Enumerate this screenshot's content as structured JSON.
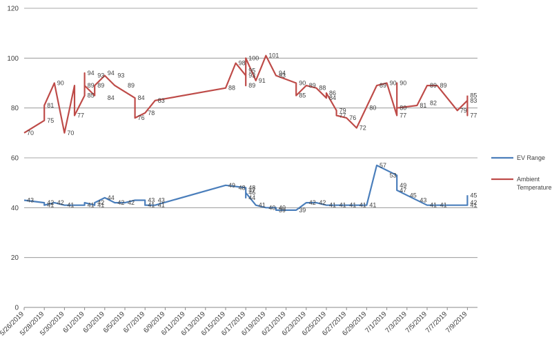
{
  "chart_data": {
    "type": "line",
    "ylim": [
      0,
      120
    ],
    "yticks": [
      0,
      20,
      40,
      60,
      80,
      100,
      120
    ],
    "xrange": [
      "2019-05-26",
      "2019-07-10"
    ],
    "xtick_labels": [
      "5/26/2019",
      "5/28/2019",
      "5/30/2019",
      "6/1/2019",
      "6/3/2019",
      "6/5/2019",
      "6/7/2019",
      "6/9/2019",
      "6/11/2019",
      "6/13/2019",
      "6/15/2019",
      "6/17/2019",
      "6/19/2019",
      "6/21/2019",
      "6/23/2019",
      "6/25/2019",
      "6/27/2019",
      "6/29/2019",
      "7/1/2019",
      "7/3/2019",
      "7/5/2019",
      "7/7/2019",
      "7/9/2019"
    ],
    "grid": true,
    "legend_position": "right",
    "series": [
      {
        "name": "EV Range",
        "color": "#4A7EBB",
        "points": [
          [
            "2019-05-26",
            43
          ],
          [
            "2019-05-28",
            42
          ],
          [
            "2019-05-28",
            41
          ],
          [
            "2019-05-29",
            42
          ],
          [
            "2019-05-29",
            42
          ],
          [
            "2019-05-30",
            41
          ],
          [
            "2019-06-01",
            41
          ],
          [
            "2019-06-01",
            42
          ],
          [
            "2019-06-02",
            41
          ],
          [
            "2019-06-02",
            42
          ],
          [
            "2019-06-03",
            44
          ],
          [
            "2019-06-04",
            42
          ],
          [
            "2019-06-05",
            42
          ],
          [
            "2019-06-06",
            43
          ],
          [
            "2019-06-07",
            43
          ],
          [
            "2019-06-07",
            41
          ],
          [
            "2019-06-08",
            41
          ],
          [
            "2019-06-15",
            49
          ],
          [
            "2019-06-17",
            48
          ],
          [
            "2019-06-17",
            44
          ],
          [
            "2019-06-17",
            46
          ],
          [
            "2019-06-18",
            41
          ],
          [
            "2019-06-19",
            40
          ],
          [
            "2019-06-20",
            40
          ],
          [
            "2019-06-20",
            39
          ],
          [
            "2019-06-22",
            39
          ],
          [
            "2019-06-23",
            42
          ],
          [
            "2019-06-24",
            42
          ],
          [
            "2019-06-25",
            41
          ],
          [
            "2019-06-26",
            41
          ],
          [
            "2019-06-28",
            41
          ],
          [
            "2019-06-29",
            41
          ],
          [
            "2019-06-30",
            57
          ],
          [
            "2019-07-02",
            53
          ],
          [
            "2019-07-02",
            49
          ],
          [
            "2019-07-02",
            47
          ],
          [
            "2019-07-03",
            45
          ],
          [
            "2019-07-05",
            41
          ],
          [
            "2019-07-06",
            41
          ],
          [
            "2019-07-09",
            41
          ],
          [
            "2019-07-09",
            42
          ],
          [
            "2019-07-09",
            45
          ]
        ],
        "labels": [
          [
            "2019-05-26",
            43
          ],
          [
            "2019-05-28",
            42
          ],
          [
            "2019-05-28",
            41
          ],
          [
            "2019-05-29",
            42
          ],
          [
            "2019-05-30",
            41
          ],
          [
            "2019-06-01",
            41
          ],
          [
            "2019-06-02",
            41
          ],
          [
            "2019-06-02",
            42
          ],
          [
            "2019-06-03",
            44
          ],
          [
            "2019-06-04",
            42
          ],
          [
            "2019-06-05",
            42
          ],
          [
            "2019-06-07",
            43
          ],
          [
            "2019-06-08",
            43
          ],
          [
            "2019-06-07",
            41
          ],
          [
            "2019-06-08",
            41
          ],
          [
            "2019-06-15",
            49
          ],
          [
            "2019-06-16",
            48
          ],
          [
            "2019-06-17",
            48
          ],
          [
            "2019-06-17",
            47
          ],
          [
            "2019-06-17",
            46
          ],
          [
            "2019-06-17",
            44
          ],
          [
            "2019-06-18",
            41
          ],
          [
            "2019-06-19",
            40
          ],
          [
            "2019-06-20",
            40
          ],
          [
            "2019-06-20",
            39
          ],
          [
            "2019-06-22",
            39
          ],
          [
            "2019-06-23",
            42
          ],
          [
            "2019-06-24",
            42
          ],
          [
            "2019-06-25",
            41
          ],
          [
            "2019-06-26",
            41
          ],
          [
            "2019-06-27",
            41
          ],
          [
            "2019-06-28",
            41
          ],
          [
            "2019-06-29",
            41
          ],
          [
            "2019-06-30",
            57
          ],
          [
            "2019-07-01",
            53
          ],
          [
            "2019-07-02",
            49
          ],
          [
            "2019-07-02",
            47
          ],
          [
            "2019-07-03",
            45
          ],
          [
            "2019-07-04",
            43
          ],
          [
            "2019-07-05",
            41
          ],
          [
            "2019-07-06",
            41
          ],
          [
            "2019-07-09",
            41
          ],
          [
            "2019-07-09",
            45
          ],
          [
            "2019-07-09",
            42
          ]
        ]
      },
      {
        "name": "Ambient Temperature",
        "color": "#BE4B48",
        "points": [
          [
            "2019-05-26",
            70
          ],
          [
            "2019-05-28",
            75
          ],
          [
            "2019-05-28",
            81
          ],
          [
            "2019-05-29",
            90
          ],
          [
            "2019-05-30",
            70
          ],
          [
            "2019-05-31",
            89
          ],
          [
            "2019-05-31",
            77
          ],
          [
            "2019-06-01",
            85
          ],
          [
            "2019-06-01",
            94
          ],
          [
            "2019-06-01",
            89
          ],
          [
            "2019-06-02",
            85
          ],
          [
            "2019-06-02",
            89
          ],
          [
            "2019-06-03",
            93
          ],
          [
            "2019-06-04",
            89
          ],
          [
            "2019-06-06",
            84
          ],
          [
            "2019-06-06",
            76
          ],
          [
            "2019-06-07",
            78
          ],
          [
            "2019-06-08",
            83
          ],
          [
            "2019-06-15",
            88
          ],
          [
            "2019-06-16",
            98
          ],
          [
            "2019-06-17",
            93
          ],
          [
            "2019-06-17",
            89
          ],
          [
            "2019-06-17",
            95
          ],
          [
            "2019-06-17",
            100
          ],
          [
            "2019-06-18",
            91
          ],
          [
            "2019-06-19",
            101
          ],
          [
            "2019-06-20",
            93
          ],
          [
            "2019-06-22",
            90
          ],
          [
            "2019-06-22",
            85
          ],
          [
            "2019-06-23",
            89
          ],
          [
            "2019-06-24",
            88
          ],
          [
            "2019-06-25",
            84
          ],
          [
            "2019-06-25",
            86
          ],
          [
            "2019-06-26",
            79
          ],
          [
            "2019-06-26",
            77
          ],
          [
            "2019-06-27",
            76
          ],
          [
            "2019-06-28",
            72
          ],
          [
            "2019-06-30",
            89
          ],
          [
            "2019-07-01",
            90
          ],
          [
            "2019-07-02",
            77
          ],
          [
            "2019-07-02",
            90
          ],
          [
            "2019-07-02",
            80
          ],
          [
            "2019-07-04",
            81
          ],
          [
            "2019-07-05",
            89
          ],
          [
            "2019-07-06",
            89
          ],
          [
            "2019-07-08",
            79
          ],
          [
            "2019-07-09",
            83
          ],
          [
            "2019-07-09",
            77
          ],
          [
            "2019-07-09",
            85
          ]
        ],
        "labels": [
          [
            "2019-05-26",
            70
          ],
          [
            "2019-05-28",
            75
          ],
          [
            "2019-05-28",
            81
          ],
          [
            "2019-05-29",
            90
          ],
          [
            "2019-05-30",
            70
          ],
          [
            "2019-05-31",
            77
          ],
          [
            "2019-06-01",
            89
          ],
          [
            "2019-06-01",
            94
          ],
          [
            "2019-06-02",
            89
          ],
          [
            "2019-06-01",
            85
          ],
          [
            "2019-06-02",
            93
          ],
          [
            "2019-06-03",
            84
          ],
          [
            "2019-06-03",
            94
          ],
          [
            "2019-06-04",
            93
          ],
          [
            "2019-06-05",
            89
          ],
          [
            "2019-06-06",
            84
          ],
          [
            "2019-06-06",
            76
          ],
          [
            "2019-06-07",
            78
          ],
          [
            "2019-06-08",
            83
          ],
          [
            "2019-06-15",
            88
          ],
          [
            "2019-06-16",
            98
          ],
          [
            "2019-06-17",
            100
          ],
          [
            "2019-06-17",
            95
          ],
          [
            "2019-06-17",
            93
          ],
          [
            "2019-06-17",
            89
          ],
          [
            "2019-06-18",
            91
          ],
          [
            "2019-06-19",
            101
          ],
          [
            "2019-06-20",
            94
          ],
          [
            "2019-06-20",
            93
          ],
          [
            "2019-06-22",
            90
          ],
          [
            "2019-06-22",
            85
          ],
          [
            "2019-06-23",
            89
          ],
          [
            "2019-06-24",
            88
          ],
          [
            "2019-06-25",
            86
          ],
          [
            "2019-06-25",
            84
          ],
          [
            "2019-06-26",
            79
          ],
          [
            "2019-06-26",
            77
          ],
          [
            "2019-06-27",
            76
          ],
          [
            "2019-06-28",
            72
          ],
          [
            "2019-06-29",
            80
          ],
          [
            "2019-06-30",
            89
          ],
          [
            "2019-07-01",
            90
          ],
          [
            "2019-07-02",
            90
          ],
          [
            "2019-07-02",
            80
          ],
          [
            "2019-07-02",
            77
          ],
          [
            "2019-07-04",
            81
          ],
          [
            "2019-07-05",
            82
          ],
          [
            "2019-07-05",
            89
          ],
          [
            "2019-07-06",
            89
          ],
          [
            "2019-07-08",
            79
          ],
          [
            "2019-07-09",
            85
          ],
          [
            "2019-07-09",
            83
          ],
          [
            "2019-07-09",
            77
          ]
        ]
      }
    ]
  }
}
